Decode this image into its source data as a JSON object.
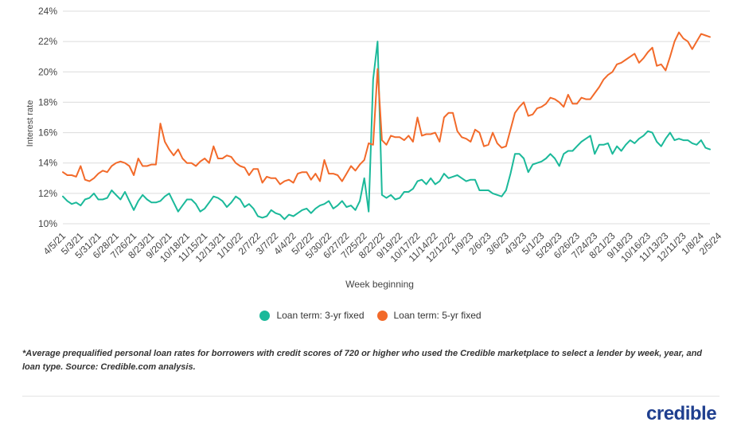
{
  "chart_data": {
    "type": "line",
    "ylabel": "Interest rate",
    "xlabel": "Week beginning",
    "ylim": [
      10,
      24
    ],
    "yticks": [
      "10%",
      "12%",
      "14%",
      "16%",
      "18%",
      "20%",
      "22%",
      "24%"
    ],
    "yticks_values": [
      10,
      12,
      14,
      16,
      18,
      20,
      22,
      24
    ],
    "grid": "horizontal",
    "legend_position": "bottom",
    "x_tick_labels": [
      "4/5/21",
      "5/3/21",
      "5/31/21",
      "6/28/21",
      "7/26/21",
      "8/23/21",
      "9/20/21",
      "10/18/21",
      "11/15/21",
      "12/13/21",
      "1/10/22",
      "2/7/22",
      "3/7/22",
      "4/4/22",
      "5/2/22",
      "5/30/22",
      "6/27/22",
      "7/25/22",
      "8/22/22",
      "9/19/22",
      "10/17/22",
      "11/14/22",
      "12/12/22",
      "1/9/23",
      "2/6/23",
      "3/6/23",
      "4/3/23",
      "5/1/23",
      "5/29/23",
      "6/26/23",
      "7/24/23",
      "8/21/23",
      "9/18/23",
      "10/16/23",
      "11/13/23",
      "12/11/23",
      "1/8/24",
      "2/5/24"
    ],
    "x_week_index_of_ticks": [
      0,
      4,
      8,
      12,
      16,
      20,
      24,
      28,
      32,
      36,
      40,
      44,
      48,
      52,
      56,
      60,
      64,
      68,
      72,
      76,
      80,
      84,
      88,
      92,
      96,
      100,
      104,
      108,
      112,
      116,
      120,
      124,
      128,
      132,
      136,
      140,
      144,
      148
    ],
    "series": [
      {
        "name": "Loan term: 3-yr fixed",
        "color": "#1bb99a",
        "values": [
          11.8,
          11.5,
          11.3,
          11.4,
          11.2,
          11.6,
          11.7,
          12.0,
          11.6,
          11.6,
          11.7,
          12.2,
          11.9,
          11.6,
          12.1,
          11.5,
          10.9,
          11.5,
          11.9,
          11.6,
          11.4,
          11.4,
          11.5,
          11.8,
          12.0,
          11.4,
          10.8,
          11.2,
          11.6,
          11.6,
          11.3,
          10.8,
          11.0,
          11.4,
          11.8,
          11.7,
          11.5,
          11.1,
          11.4,
          11.8,
          11.6,
          11.1,
          11.3,
          11.0,
          10.5,
          10.4,
          10.5,
          10.9,
          10.7,
          10.6,
          10.3,
          10.6,
          10.5,
          10.7,
          10.9,
          11.0,
          10.7,
          11.0,
          11.2,
          11.3,
          11.5,
          11.0,
          11.2,
          11.5,
          11.1,
          11.2,
          10.9,
          11.5,
          13.0,
          10.8,
          19.5,
          22.0,
          11.9,
          11.7,
          11.9,
          11.6,
          11.7,
          12.1,
          12.1,
          12.3,
          12.8,
          12.9,
          12.6,
          13.0,
          12.6,
          12.8,
          13.3,
          13.0,
          13.1,
          13.2,
          13.0,
          12.8,
          12.9,
          12.9,
          12.2,
          12.2,
          12.2,
          12.0,
          11.9,
          11.8,
          12.2,
          13.3,
          14.6,
          14.6,
          14.3,
          13.4,
          13.9,
          14.0,
          14.1,
          14.3,
          14.6,
          14.3,
          13.8,
          14.6,
          14.8,
          14.8,
          15.1,
          15.4,
          15.6,
          15.8,
          14.6,
          15.2,
          15.2,
          15.3,
          14.6,
          15.1,
          14.8,
          15.2,
          15.5,
          15.3,
          15.6,
          15.8,
          16.1,
          16.0,
          15.4,
          15.1,
          15.6,
          16.0,
          15.5,
          15.6,
          15.5,
          15.5,
          15.3,
          15.2,
          15.5,
          15.0,
          14.9
        ]
      },
      {
        "name": "Loan term: 5-yr fixed",
        "color": "#f26a2a",
        "values": [
          13.4,
          13.2,
          13.2,
          13.1,
          13.8,
          12.9,
          12.8,
          13.0,
          13.3,
          13.5,
          13.4,
          13.8,
          14.0,
          14.1,
          14.0,
          13.8,
          13.2,
          14.3,
          13.8,
          13.8,
          13.9,
          13.9,
          16.6,
          15.4,
          14.9,
          14.5,
          14.9,
          14.3,
          14.0,
          14.0,
          13.8,
          14.1,
          14.3,
          14.0,
          15.1,
          14.3,
          14.3,
          14.5,
          14.4,
          14.0,
          13.8,
          13.7,
          13.2,
          13.6,
          13.6,
          12.7,
          13.1,
          13.0,
          13.0,
          12.6,
          12.8,
          12.9,
          12.7,
          13.3,
          13.4,
          13.4,
          12.9,
          13.3,
          12.8,
          14.2,
          13.3,
          13.3,
          13.2,
          12.8,
          13.3,
          13.8,
          13.5,
          13.9,
          14.2,
          15.3,
          15.2,
          20.2,
          15.5,
          15.2,
          15.8,
          15.7,
          15.7,
          15.5,
          15.8,
          15.4,
          17.0,
          15.8,
          15.9,
          15.9,
          16.0,
          15.4,
          17.0,
          17.3,
          17.3,
          16.1,
          15.7,
          15.6,
          15.4,
          16.2,
          16.0,
          15.1,
          15.2,
          16.0,
          15.3,
          15.0,
          15.1,
          16.2,
          17.3,
          17.7,
          18.0,
          17.1,
          17.2,
          17.6,
          17.7,
          17.9,
          18.3,
          18.2,
          18.0,
          17.7,
          18.5,
          17.9,
          17.9,
          18.3,
          18.2,
          18.2,
          18.6,
          19.0,
          19.5,
          19.8,
          20.0,
          20.5,
          20.6,
          20.8,
          21.0,
          21.2,
          20.6,
          20.9,
          21.3,
          21.6,
          20.4,
          20.5,
          20.1,
          21.0,
          22.0,
          22.6,
          22.2,
          22.0,
          21.5,
          22.0,
          22.5,
          22.4,
          22.3
        ]
      }
    ]
  },
  "legend": [
    {
      "label": "Loan term: 3-yr fixed",
      "color": "#1bb99a"
    },
    {
      "label": "Loan term: 5-yr fixed",
      "color": "#f26a2a"
    }
  ],
  "footnote": "*Average prequalified personal loan rates for borrowers with credit scores of 720 or higher who used the Credible marketplace to select a lender by week, year, and loan type. Source: Credible.com analysis.",
  "brand": "credible"
}
